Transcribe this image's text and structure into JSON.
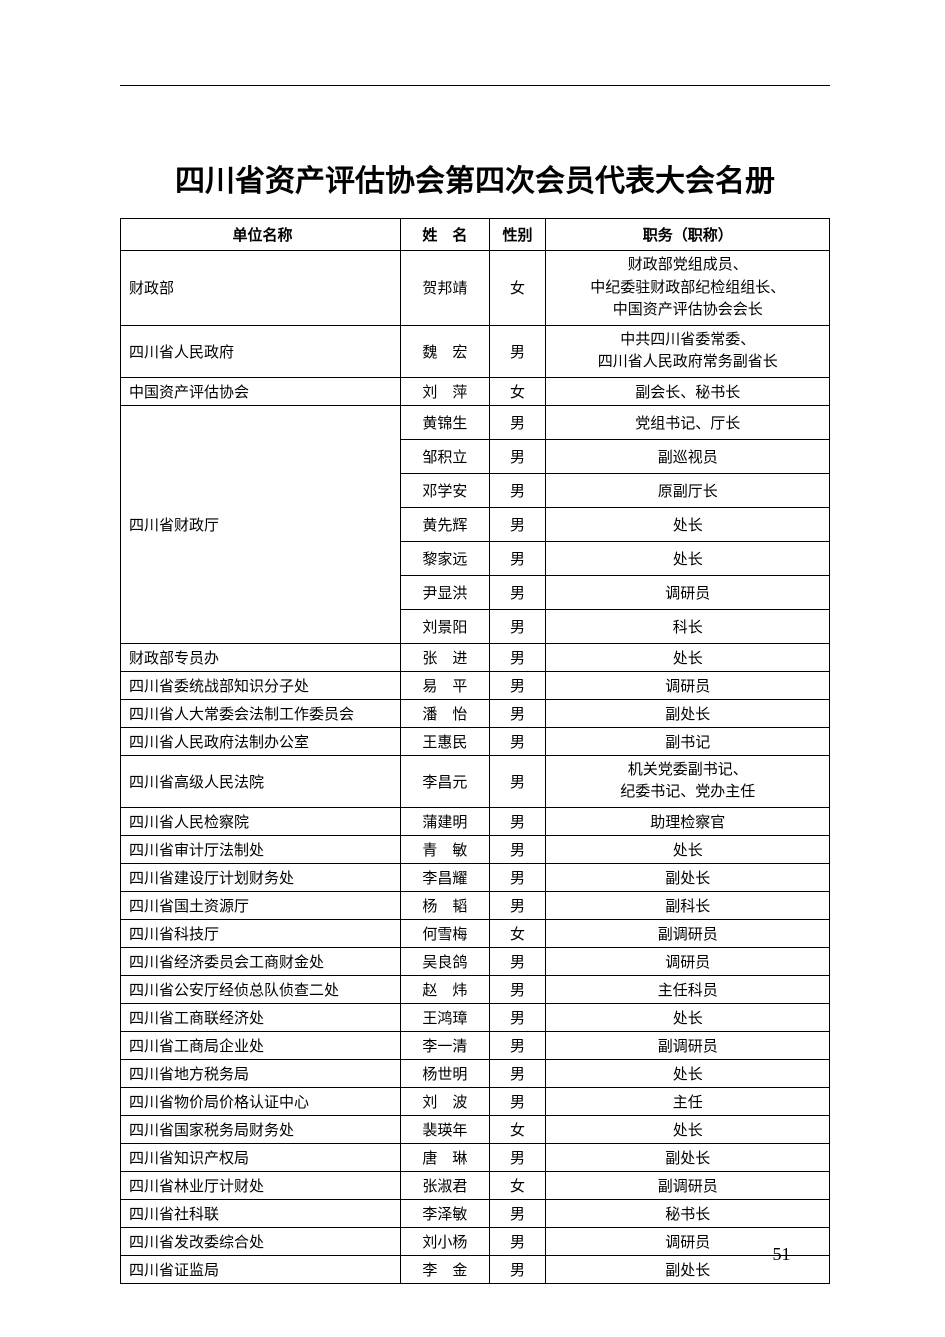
{
  "document": {
    "title": "四川省资产评估协会第四次会员代表大会名册",
    "page_number": "51",
    "background_color": "#ffffff",
    "text_color": "#000000",
    "border_color": "#000000"
  },
  "table": {
    "headers": {
      "org": "单位名称",
      "name": "姓　名",
      "gender": "性别",
      "title": "职务（职称）"
    },
    "rows": [
      {
        "org": "财政部",
        "name": "贺邦靖",
        "gender": "女",
        "title": "财政部党组成员、\n中纪委驻财政部纪检组组长、\n中国资产评估协会会长",
        "org_rowspan": 1,
        "multiline": true
      },
      {
        "org": "四川省人民政府",
        "name": "魏　宏",
        "gender": "男",
        "title": "中共四川省委常委、\n四川省人民政府常务副省长",
        "org_rowspan": 1,
        "multiline": true
      },
      {
        "org": "中国资产评估协会",
        "name": "刘　萍",
        "gender": "女",
        "title": "副会长、秘书长",
        "org_rowspan": 1
      },
      {
        "org": "四川省财政厅",
        "name": "黄锦生",
        "gender": "男",
        "title": "党组书记、厅长",
        "org_rowspan": 7
      },
      {
        "org": "",
        "name": "邹积立",
        "gender": "男",
        "title": "副巡视员"
      },
      {
        "org": "",
        "name": "邓学安",
        "gender": "男",
        "title": "原副厅长"
      },
      {
        "org": "",
        "name": "黄先辉",
        "gender": "男",
        "title": "处长"
      },
      {
        "org": "",
        "name": "黎家远",
        "gender": "男",
        "title": "处长"
      },
      {
        "org": "",
        "name": "尹显洪",
        "gender": "男",
        "title": "调研员"
      },
      {
        "org": "",
        "name": "刘景阳",
        "gender": "男",
        "title": "科长"
      },
      {
        "org": "财政部专员办",
        "name": "张　进",
        "gender": "男",
        "title": "处长",
        "org_rowspan": 1
      },
      {
        "org": "四川省委统战部知识分子处",
        "name": "易　平",
        "gender": "男",
        "title": "调研员",
        "org_rowspan": 1
      },
      {
        "org": "四川省人大常委会法制工作委员会",
        "name": "潘　怡",
        "gender": "男",
        "title": "副处长",
        "org_rowspan": 1
      },
      {
        "org": "四川省人民政府法制办公室",
        "name": "王惠民",
        "gender": "男",
        "title": "副书记",
        "org_rowspan": 1
      },
      {
        "org": "四川省高级人民法院",
        "name": "李昌元",
        "gender": "男",
        "title": "机关党委副书记、\n纪委书记、党办主任",
        "org_rowspan": 1,
        "multiline": true
      },
      {
        "org": "四川省人民检察院",
        "name": "蒲建明",
        "gender": "男",
        "title": "助理检察官",
        "org_rowspan": 1
      },
      {
        "org": "四川省审计厅法制处",
        "name": "青　敏",
        "gender": "男",
        "title": "处长",
        "org_rowspan": 1
      },
      {
        "org": "四川省建设厅计划财务处",
        "name": "李昌耀",
        "gender": "男",
        "title": "副处长",
        "org_rowspan": 1
      },
      {
        "org": "四川省国土资源厅",
        "name": "杨　韬",
        "gender": "男",
        "title": "副科长",
        "org_rowspan": 1
      },
      {
        "org": "四川省科技厅",
        "name": "何雪梅",
        "gender": "女",
        "title": "副调研员",
        "org_rowspan": 1
      },
      {
        "org": "四川省经济委员会工商财金处",
        "name": "吴良鸽",
        "gender": "男",
        "title": "调研员",
        "org_rowspan": 1
      },
      {
        "org": "四川省公安厅经侦总队侦查二处",
        "name": "赵　炜",
        "gender": "男",
        "title": "主任科员",
        "org_rowspan": 1
      },
      {
        "org": "四川省工商联经济处",
        "name": "王鸿璋",
        "gender": "男",
        "title": "处长",
        "org_rowspan": 1
      },
      {
        "org": "四川省工商局企业处",
        "name": "李一清",
        "gender": "男",
        "title": "副调研员",
        "org_rowspan": 1
      },
      {
        "org": "四川省地方税务局",
        "name": "杨世明",
        "gender": "男",
        "title": "处长",
        "org_rowspan": 1
      },
      {
        "org": "四川省物价局价格认证中心",
        "name": "刘　波",
        "gender": "男",
        "title": "主任",
        "org_rowspan": 1
      },
      {
        "org": "四川省国家税务局财务处",
        "name": "裴瑛年",
        "gender": "女",
        "title": "处长",
        "org_rowspan": 1
      },
      {
        "org": "四川省知识产权局",
        "name": "唐　琳",
        "gender": "男",
        "title": "副处长",
        "org_rowspan": 1
      },
      {
        "org": "四川省林业厅计财处",
        "name": "张淑君",
        "gender": "女",
        "title": "副调研员",
        "org_rowspan": 1
      },
      {
        "org": "四川省社科联",
        "name": "李泽敏",
        "gender": "男",
        "title": "秘书长",
        "org_rowspan": 1
      },
      {
        "org": "四川省发改委综合处",
        "name": "刘小杨",
        "gender": "男",
        "title": "调研员",
        "org_rowspan": 1
      },
      {
        "org": "四川省证监局",
        "name": "李　金",
        "gender": "男",
        "title": "副处长",
        "org_rowspan": 1
      }
    ]
  }
}
